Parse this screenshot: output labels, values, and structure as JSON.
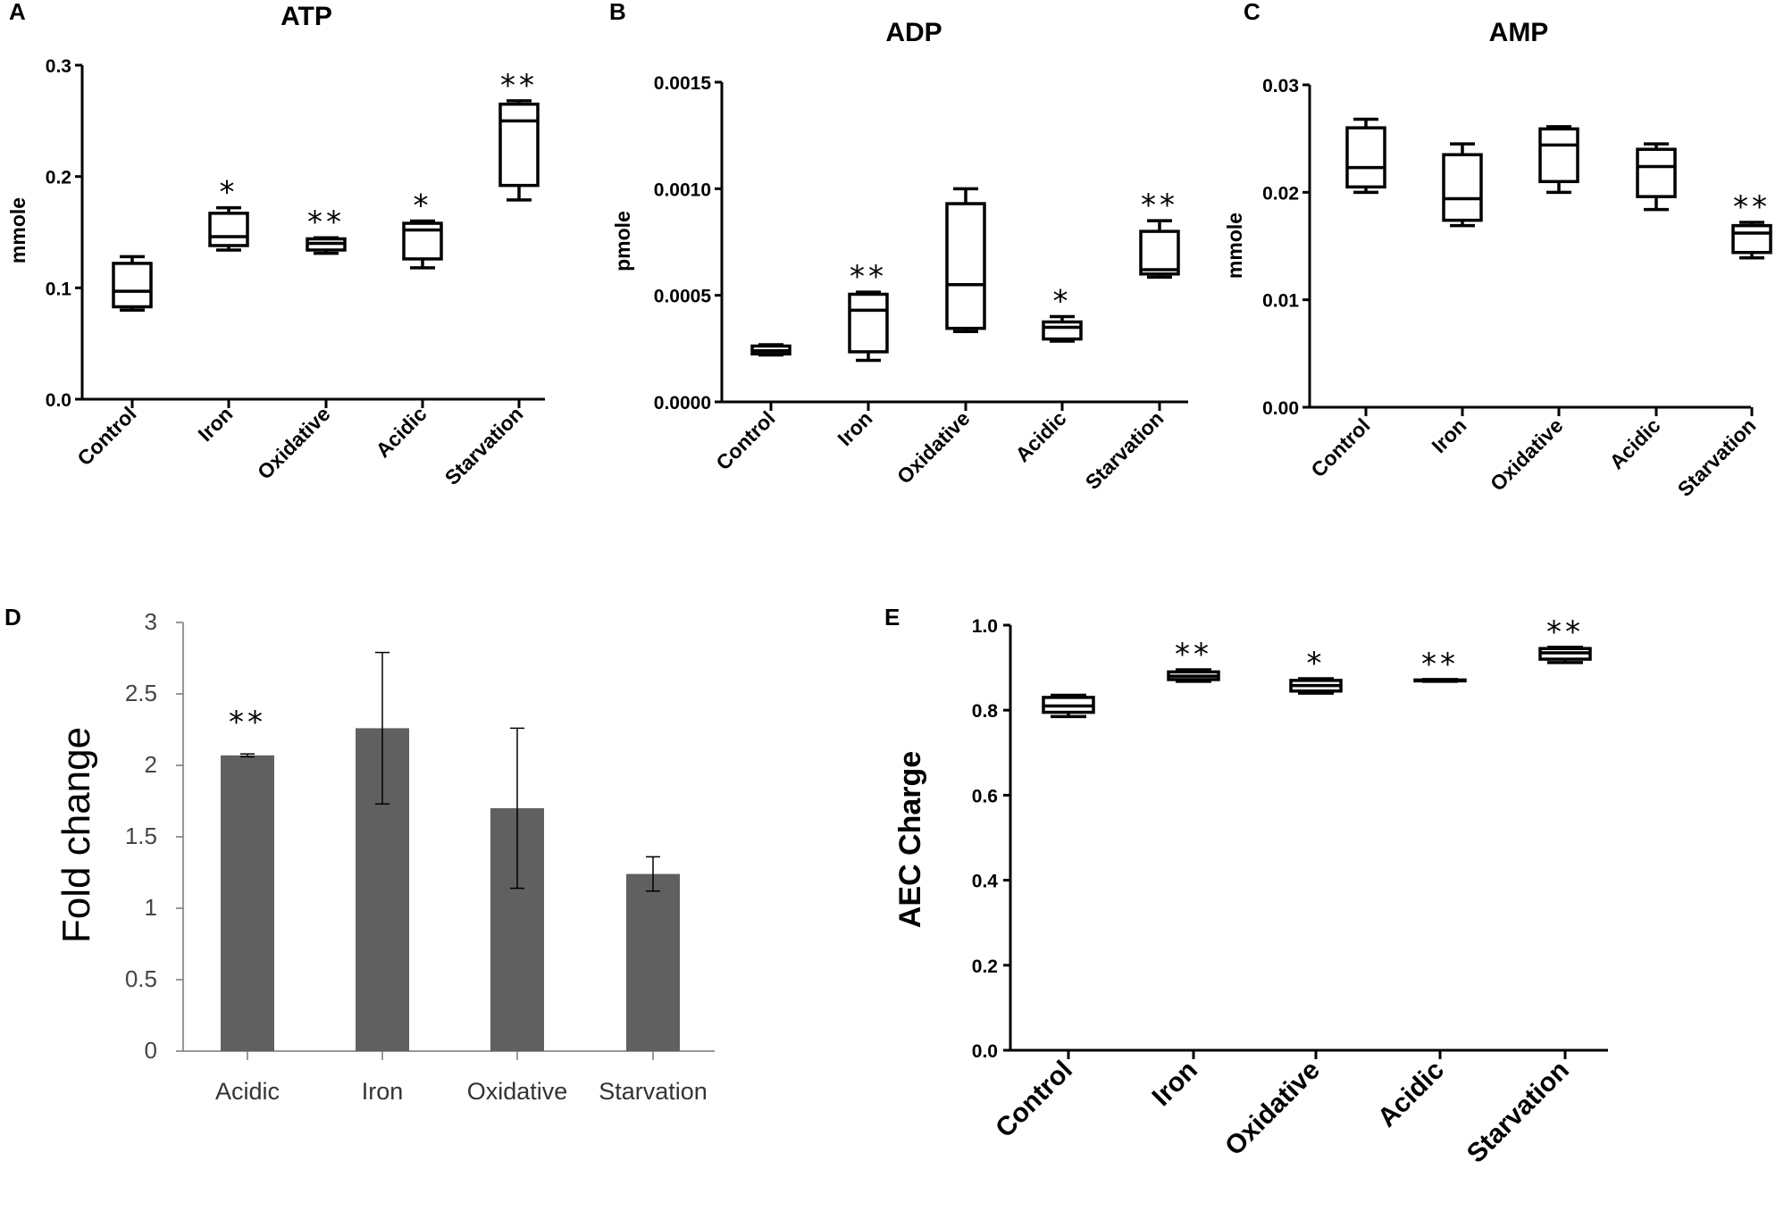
{
  "chart_data": [
    {
      "panel": "A",
      "type": "box",
      "title": "ATP",
      "ylabel": "mmole",
      "ylim": [
        0,
        0.3
      ],
      "yticks": [
        "0.0",
        "0.1",
        "0.2",
        "0.3"
      ],
      "categories": [
        "Control",
        "Iron",
        "Oxidative",
        "Acidic",
        "Starvation"
      ],
      "boxes": [
        {
          "min": 0.08,
          "q1": 0.083,
          "median": 0.097,
          "q3": 0.122,
          "max": 0.128,
          "sig": ""
        },
        {
          "min": 0.134,
          "q1": 0.138,
          "median": 0.146,
          "q3": 0.167,
          "max": 0.172,
          "sig": "*"
        },
        {
          "min": 0.131,
          "q1": 0.134,
          "median": 0.14,
          "q3": 0.144,
          "max": 0.145,
          "sig": "**"
        },
        {
          "min": 0.118,
          "q1": 0.126,
          "median": 0.152,
          "q3": 0.158,
          "max": 0.16,
          "sig": "*"
        },
        {
          "min": 0.179,
          "q1": 0.192,
          "median": 0.25,
          "q3": 0.265,
          "max": 0.268,
          "sig": "**"
        }
      ]
    },
    {
      "panel": "B",
      "type": "box",
      "title": "ADP",
      "ylabel": "pmole",
      "ylim": [
        0,
        0.0015
      ],
      "yticks": [
        "0.0000",
        "0.0005",
        "0.0010",
        "0.0015"
      ],
      "categories": [
        "Control",
        "Iron",
        "Oxidative",
        "Acidic",
        "Starvation"
      ],
      "boxes": [
        {
          "min": 0.00022,
          "q1": 0.000225,
          "median": 0.00024,
          "q3": 0.000262,
          "max": 0.000268,
          "sig": ""
        },
        {
          "min": 0.000195,
          "q1": 0.000235,
          "median": 0.00043,
          "q3": 0.000505,
          "max": 0.000515,
          "sig": "**"
        },
        {
          "min": 0.00033,
          "q1": 0.000345,
          "median": 0.00055,
          "q3": 0.00093,
          "max": 0.001,
          "sig": ""
        },
        {
          "min": 0.000285,
          "q1": 0.000295,
          "median": 0.00035,
          "q3": 0.000375,
          "max": 0.0004,
          "sig": "*"
        },
        {
          "min": 0.000585,
          "q1": 0.0006,
          "median": 0.00062,
          "q3": 0.0008,
          "max": 0.00085,
          "sig": "**"
        }
      ]
    },
    {
      "panel": "C",
      "type": "box",
      "title": "AMP",
      "ylabel": "mmole",
      "ylim": [
        0,
        0.03
      ],
      "yticks": [
        "0.00",
        "0.01",
        "0.02",
        "0.03"
      ],
      "categories": [
        "Control",
        "Iron",
        "Oxidative",
        "Acidic",
        "Starvation"
      ],
      "boxes": [
        {
          "min": 0.02,
          "q1": 0.0205,
          "median": 0.0223,
          "q3": 0.026,
          "max": 0.0268,
          "sig": ""
        },
        {
          "min": 0.0169,
          "q1": 0.0174,
          "median": 0.0194,
          "q3": 0.0235,
          "max": 0.0245,
          "sig": ""
        },
        {
          "min": 0.02,
          "q1": 0.021,
          "median": 0.0244,
          "q3": 0.0259,
          "max": 0.0261,
          "sig": ""
        },
        {
          "min": 0.0184,
          "q1": 0.0196,
          "median": 0.0224,
          "q3": 0.024,
          "max": 0.0245,
          "sig": ""
        },
        {
          "min": 0.0139,
          "q1": 0.0144,
          "median": 0.0162,
          "q3": 0.0169,
          "max": 0.0172,
          "sig": "**"
        }
      ]
    },
    {
      "panel": "D",
      "type": "bar",
      "ylabel": "Fold change",
      "ylim": [
        0,
        3
      ],
      "yticks": [
        "0",
        "0.5",
        "1",
        "1.5",
        "2",
        "2.5",
        "3"
      ],
      "categories": [
        "Acidic",
        "Iron",
        "Oxidative",
        "Starvation"
      ],
      "values": [
        2.07,
        2.26,
        1.7,
        1.24
      ],
      "errors": [
        0.01,
        0.53,
        0.56,
        0.12
      ],
      "sig": [
        "**",
        "",
        "",
        ""
      ],
      "bar_color": "#606060"
    },
    {
      "panel": "E",
      "type": "box",
      "ylabel": "AEC Charge",
      "ylim": [
        0,
        1.0
      ],
      "yticks": [
        "0.0",
        "0.2",
        "0.4",
        "0.6",
        "0.8",
        "1.0"
      ],
      "categories": [
        "Control",
        "Iron",
        "Oxidative",
        "Acidic",
        "Starvation"
      ],
      "boxes": [
        {
          "min": 0.785,
          "q1": 0.795,
          "median": 0.81,
          "q3": 0.83,
          "max": 0.835,
          "sig": ""
        },
        {
          "min": 0.868,
          "q1": 0.872,
          "median": 0.88,
          "q3": 0.89,
          "max": 0.895,
          "sig": "**"
        },
        {
          "min": 0.84,
          "q1": 0.845,
          "median": 0.858,
          "q3": 0.87,
          "max": 0.874,
          "sig": "*"
        },
        {
          "min": 0.868,
          "q1": 0.869,
          "median": 0.87,
          "q3": 0.871,
          "max": 0.872,
          "sig": "**"
        },
        {
          "min": 0.912,
          "q1": 0.92,
          "median": 0.935,
          "q3": 0.945,
          "max": 0.948,
          "sig": "**"
        }
      ]
    }
  ]
}
